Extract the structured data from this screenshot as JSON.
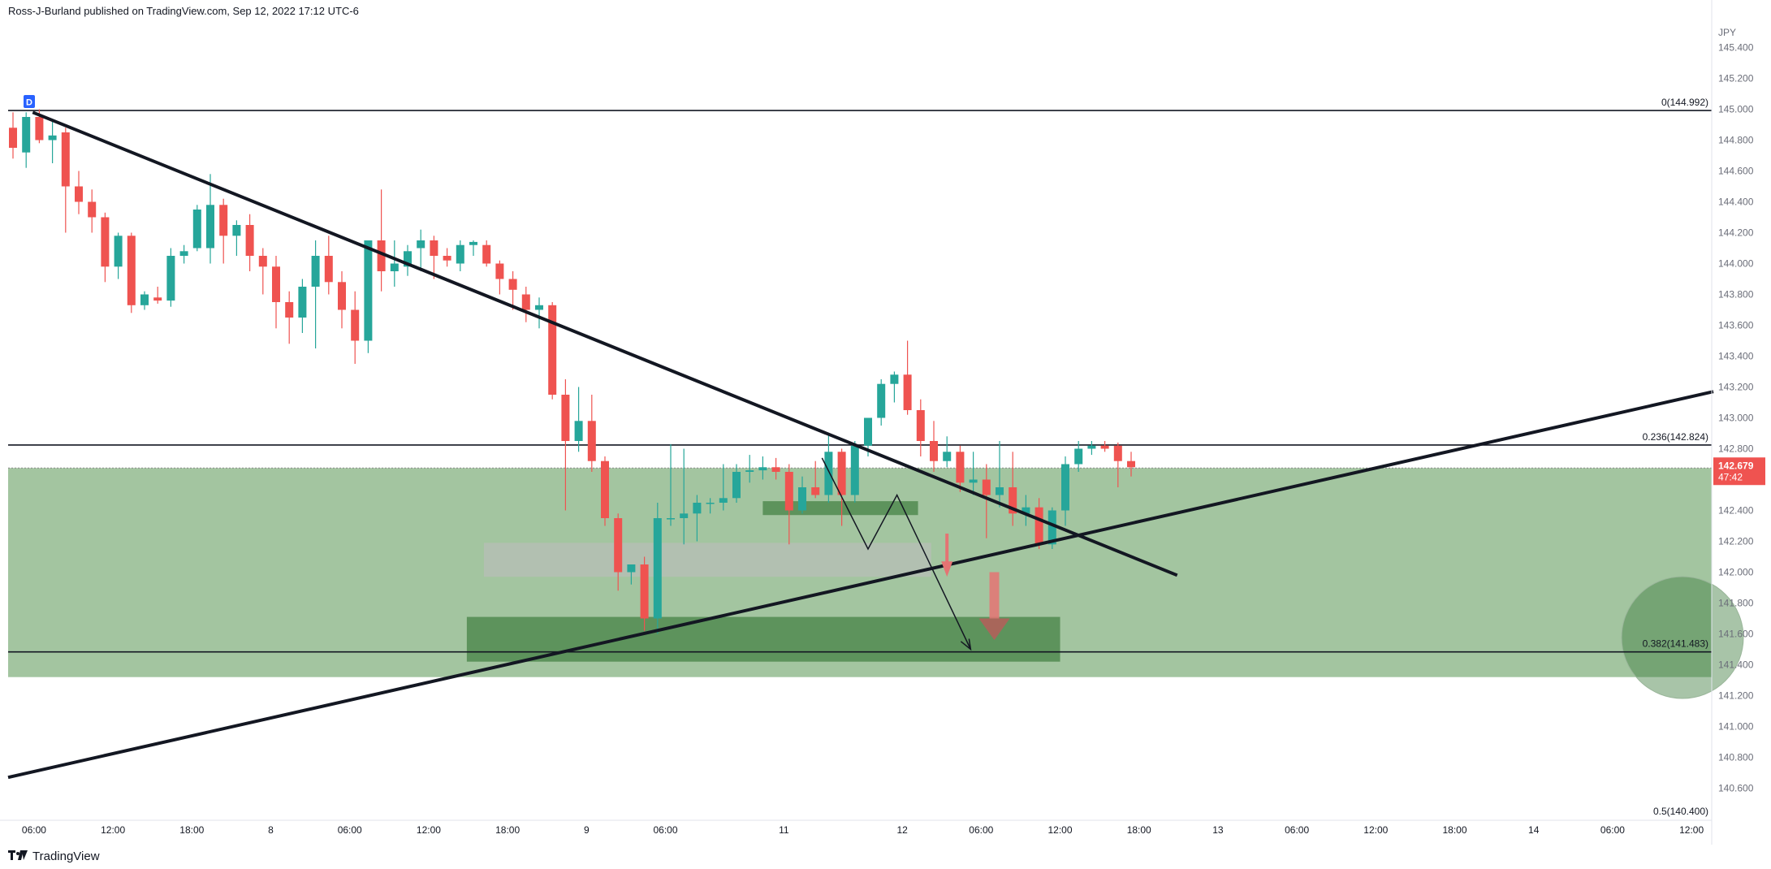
{
  "header": {
    "attribution": "Ross-J-Burland published on TradingView.com, Sep 12, 2022 17:12 UTC-6"
  },
  "footer": {
    "logo_icon": "tradingview-logo-icon",
    "brand": "TradingView"
  },
  "colors": {
    "bull": "#26a69a",
    "bear": "#ef5350",
    "zone": "#6aa166",
    "zone_dark": "#3f7d3f",
    "zone_gray": "#bdbdbd",
    "price_tag": "#ef5350"
  },
  "chart_data": {
    "type": "candlestick",
    "currency_label": "JPY",
    "ylim": [
      140.5,
      145.55
    ],
    "y_ticks": [
      "145.400",
      "145.200",
      "145.000",
      "144.800",
      "144.600",
      "144.400",
      "144.200",
      "144.000",
      "143.800",
      "143.600",
      "143.400",
      "143.200",
      "143.000",
      "142.800",
      "142.600",
      "142.400",
      "142.200",
      "142.000",
      "141.800",
      "141.600",
      "141.400",
      "141.200",
      "141.000",
      "140.800",
      "140.600"
    ],
    "x_ticks": [
      {
        "label": "06:00",
        "i": 1.6
      },
      {
        "label": "12:00",
        "i": 7.6
      },
      {
        "label": "18:00",
        "i": 13.6
      },
      {
        "label": "8",
        "i": 19.6
      },
      {
        "label": "06:00",
        "i": 25.6
      },
      {
        "label": "12:00",
        "i": 31.6
      },
      {
        "label": "18:00",
        "i": 37.6
      },
      {
        "label": "9",
        "i": 43.6
      },
      {
        "label": "06:00",
        "i": 49.6
      },
      {
        "label": "11",
        "i": 58.6
      },
      {
        "label": "12",
        "i": 67.6
      },
      {
        "label": "06:00",
        "i": 73.6
      },
      {
        "label": "12:00",
        "i": 79.6
      },
      {
        "label": "18:00",
        "i": 85.6
      },
      {
        "label": "13",
        "i": 91.6
      },
      {
        "label": "06:00",
        "i": 97.6
      },
      {
        "label": "12:00",
        "i": 103.6
      },
      {
        "label": "18:00",
        "i": 109.6
      },
      {
        "label": "14",
        "i": 115.6
      },
      {
        "label": "06:00",
        "i": 121.6
      },
      {
        "label": "12:00",
        "i": 127.6
      }
    ],
    "ohlc": [
      [
        144.88,
        144.98,
        144.68,
        144.75
      ],
      [
        144.72,
        144.98,
        144.62,
        144.95
      ],
      [
        144.95,
        145.0,
        144.78,
        144.8
      ],
      [
        144.8,
        144.92,
        144.65,
        144.83
      ],
      [
        144.85,
        144.88,
        144.2,
        144.5
      ],
      [
        144.5,
        144.6,
        144.32,
        144.4
      ],
      [
        144.4,
        144.48,
        144.2,
        144.3
      ],
      [
        144.3,
        144.33,
        143.88,
        143.98
      ],
      [
        143.98,
        144.2,
        143.9,
        144.18
      ],
      [
        144.18,
        144.2,
        143.68,
        143.73
      ],
      [
        143.73,
        143.82,
        143.7,
        143.8
      ],
      [
        143.78,
        143.85,
        143.74,
        143.76
      ],
      [
        143.76,
        144.1,
        143.72,
        144.05
      ],
      [
        144.05,
        144.12,
        144.0,
        144.08
      ],
      [
        144.1,
        144.38,
        144.08,
        144.35
      ],
      [
        144.1,
        144.58,
        144.0,
        144.38
      ],
      [
        144.38,
        144.42,
        144.0,
        144.18
      ],
      [
        144.18,
        144.28,
        144.05,
        144.25
      ],
      [
        144.25,
        144.32,
        143.95,
        144.05
      ],
      [
        144.05,
        144.1,
        143.8,
        143.98
      ],
      [
        143.98,
        144.05,
        143.58,
        143.75
      ],
      [
        143.75,
        143.82,
        143.48,
        143.65
      ],
      [
        143.65,
        143.9,
        143.55,
        143.85
      ],
      [
        143.85,
        144.15,
        143.45,
        144.05
      ],
      [
        144.05,
        144.18,
        143.8,
        143.88
      ],
      [
        143.88,
        143.95,
        143.58,
        143.7
      ],
      [
        143.7,
        143.82,
        143.35,
        143.5
      ],
      [
        143.5,
        144.15,
        143.42,
        144.15
      ],
      [
        144.15,
        144.48,
        143.82,
        143.95
      ],
      [
        143.95,
        144.15,
        143.85,
        144.0
      ],
      [
        143.98,
        144.12,
        143.92,
        144.08
      ],
      [
        144.1,
        144.22,
        143.95,
        144.15
      ],
      [
        144.15,
        144.18,
        143.9,
        144.05
      ],
      [
        144.05,
        144.1,
        143.98,
        144.02
      ],
      [
        144.0,
        144.15,
        143.95,
        144.12
      ],
      [
        144.12,
        144.15,
        144.05,
        144.14
      ],
      [
        144.12,
        144.15,
        143.98,
        144.0
      ],
      [
        144.0,
        144.02,
        143.8,
        143.9
      ],
      [
        143.9,
        143.95,
        143.7,
        143.83
      ],
      [
        143.8,
        143.85,
        143.62,
        143.7
      ],
      [
        143.7,
        143.78,
        143.58,
        143.73
      ],
      [
        143.73,
        143.75,
        143.12,
        143.15
      ],
      [
        143.15,
        143.25,
        142.4,
        142.85
      ],
      [
        142.85,
        143.2,
        142.78,
        142.98
      ],
      [
        142.98,
        143.15,
        142.65,
        142.72
      ],
      [
        142.72,
        142.75,
        142.3,
        142.35
      ],
      [
        142.35,
        142.38,
        141.88,
        142.0
      ],
      [
        142.0,
        142.05,
        141.92,
        142.05
      ],
      [
        142.05,
        142.1,
        141.62,
        141.7
      ],
      [
        141.7,
        142.45,
        141.6,
        142.35
      ],
      [
        142.35,
        142.83,
        142.3,
        142.35
      ],
      [
        142.35,
        142.8,
        142.18,
        142.38
      ],
      [
        142.38,
        142.5,
        142.2,
        142.45
      ],
      [
        142.45,
        142.48,
        142.38,
        142.45
      ],
      [
        142.45,
        142.7,
        142.4,
        142.48
      ],
      [
        142.48,
        142.7,
        142.45,
        142.65
      ],
      [
        142.65,
        142.76,
        142.58,
        142.66
      ],
      [
        142.66,
        142.75,
        142.6,
        142.68
      ],
      [
        142.68,
        142.74,
        142.6,
        142.65
      ],
      [
        142.65,
        142.7,
        142.18,
        142.4
      ],
      [
        142.4,
        142.62,
        142.38,
        142.55
      ],
      [
        142.55,
        142.72,
        142.48,
        142.5
      ],
      [
        142.5,
        142.9,
        142.45,
        142.78
      ],
      [
        142.78,
        142.8,
        142.3,
        142.5
      ],
      [
        142.5,
        142.85,
        142.45,
        142.82
      ],
      [
        142.82,
        143.0,
        142.75,
        143.0
      ],
      [
        143.0,
        143.25,
        142.95,
        143.22
      ],
      [
        143.22,
        143.3,
        143.1,
        143.28
      ],
      [
        143.28,
        143.5,
        143.02,
        143.05
      ],
      [
        143.05,
        143.12,
        142.75,
        142.85
      ],
      [
        142.85,
        142.98,
        142.65,
        142.72
      ],
      [
        142.72,
        142.88,
        142.68,
        142.78
      ],
      [
        142.78,
        142.82,
        142.52,
        142.58
      ],
      [
        142.58,
        142.78,
        142.5,
        142.6
      ],
      [
        142.6,
        142.7,
        142.22,
        142.5
      ],
      [
        142.5,
        142.85,
        142.42,
        142.55
      ],
      [
        142.55,
        142.78,
        142.3,
        142.38
      ],
      [
        142.38,
        142.5,
        142.3,
        142.42
      ],
      [
        142.42,
        142.48,
        142.15,
        142.18
      ],
      [
        142.18,
        142.42,
        142.15,
        142.4
      ],
      [
        142.4,
        142.75,
        142.3,
        142.7
      ],
      [
        142.7,
        142.85,
        142.65,
        142.8
      ],
      [
        142.8,
        142.85,
        142.76,
        142.82
      ],
      [
        142.82,
        142.85,
        142.78,
        142.8
      ],
      [
        142.82,
        142.84,
        142.55,
        142.72
      ],
      [
        142.72,
        142.78,
        142.62,
        142.68
      ]
    ],
    "last_price": "142.679",
    "countdown": "47:42",
    "fib_levels": [
      {
        "label": "0(144.992)",
        "value": 144.992
      },
      {
        "label": "0.236(142.824)",
        "value": 142.824
      },
      {
        "label": "0.382(141.483)",
        "value": 141.483
      },
      {
        "label": "0.5(140.400)",
        "value": 140.4
      }
    ],
    "period_marker": "D"
  }
}
